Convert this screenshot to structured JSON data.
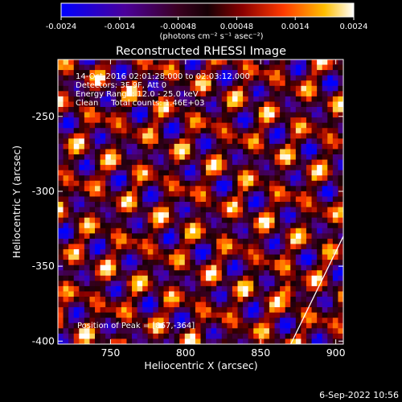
{
  "chart_data": {
    "type": "heatmap",
    "title": "Reconstructed RHESSI Image",
    "xlabel": "Heliocentric X (arcsec)",
    "ylabel": "Heliocentric Y (arcsec)",
    "xlim": [
      715,
      905
    ],
    "ylim": [
      -402,
      -212
    ],
    "x_ticks": [
      750,
      800,
      850,
      900
    ],
    "y_ticks": [
      -250,
      -300,
      -350,
      -400
    ],
    "colorbar": {
      "ticks": [
        "-0.0024",
        "-0.0014",
        "-0.00048",
        "0.00048",
        "0.0014",
        "0.0024"
      ],
      "range": [
        -0.0024,
        0.0024
      ],
      "units_label": "(photons cm⁻² s⁻¹ asec⁻²)"
    },
    "annotations": [
      "14-Oct-2016 02:01:28.000 to 02:03:12.000",
      "Detectors: 3F 9F, Att 0",
      "Energy Range: 12.0 - 25.0 keV",
      "Clean     Total counts: 1.46E+03"
    ],
    "peak": {
      "label": "Position of Peak = [867,-364]",
      "x": 867,
      "y": -364
    },
    "limb_line": [
      [
        870,
        -402
      ],
      [
        905,
        -330
      ]
    ]
  },
  "footer": {
    "date": "6-Sep-2022 10:56"
  }
}
